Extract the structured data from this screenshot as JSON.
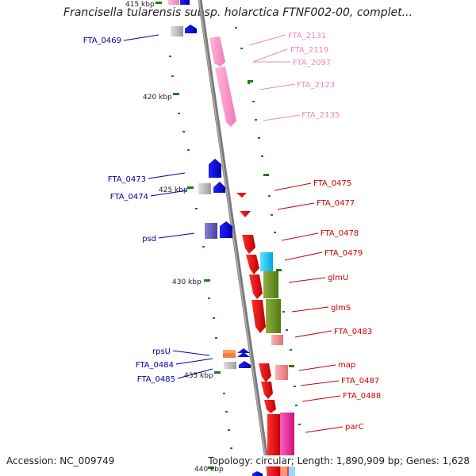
{
  "title": "Francisella tularensis subsp. holarctica FTNF002-00, complet...",
  "accession": "Accession: NC_009749",
  "summary": "Topology: circular; Length: 1,890,909 bp; Genes: 1,628",
  "colors": {
    "backbone": "#8c8c8c",
    "left_label": "#0000aa",
    "right_red": "#cc0000",
    "right_pink": "#ee88bb",
    "ruler_tick": "#2a7a2a"
  },
  "ruler": [
    {
      "label": "415 kbp"
    },
    {
      "label": "420 kbp"
    },
    {
      "label": "425 kbp"
    },
    {
      "label": "430 kbp"
    },
    {
      "label": "435 kbp"
    },
    {
      "label": "440 kbp"
    }
  ],
  "left_labels": [
    {
      "text": "FTA_0469"
    },
    {
      "text": "FTA_0473"
    },
    {
      "text": "FTA_0474"
    },
    {
      "text": "psd"
    },
    {
      "text": "rpsU"
    },
    {
      "text": "FTA_0484"
    },
    {
      "text": "FTA_0485"
    }
  ],
  "right_labels_pink": [
    {
      "text": "FTA_2131"
    },
    {
      "text": "FTA_2119"
    },
    {
      "text": "FTA_2097"
    },
    {
      "text": "FTA_2123"
    },
    {
      "text": "FTA_2135"
    }
  ],
  "right_labels_red": [
    {
      "text": "FTA_0475"
    },
    {
      "text": "FTA_0477"
    },
    {
      "text": "FTA_0478"
    },
    {
      "text": "FTA_0479"
    },
    {
      "text": "glmU"
    },
    {
      "text": "glmS"
    },
    {
      "text": "FTA_0483"
    },
    {
      "text": "map"
    },
    {
      "text": "FTA_0487"
    },
    {
      "text": "FTA_0488"
    },
    {
      "text": "parC"
    }
  ]
}
